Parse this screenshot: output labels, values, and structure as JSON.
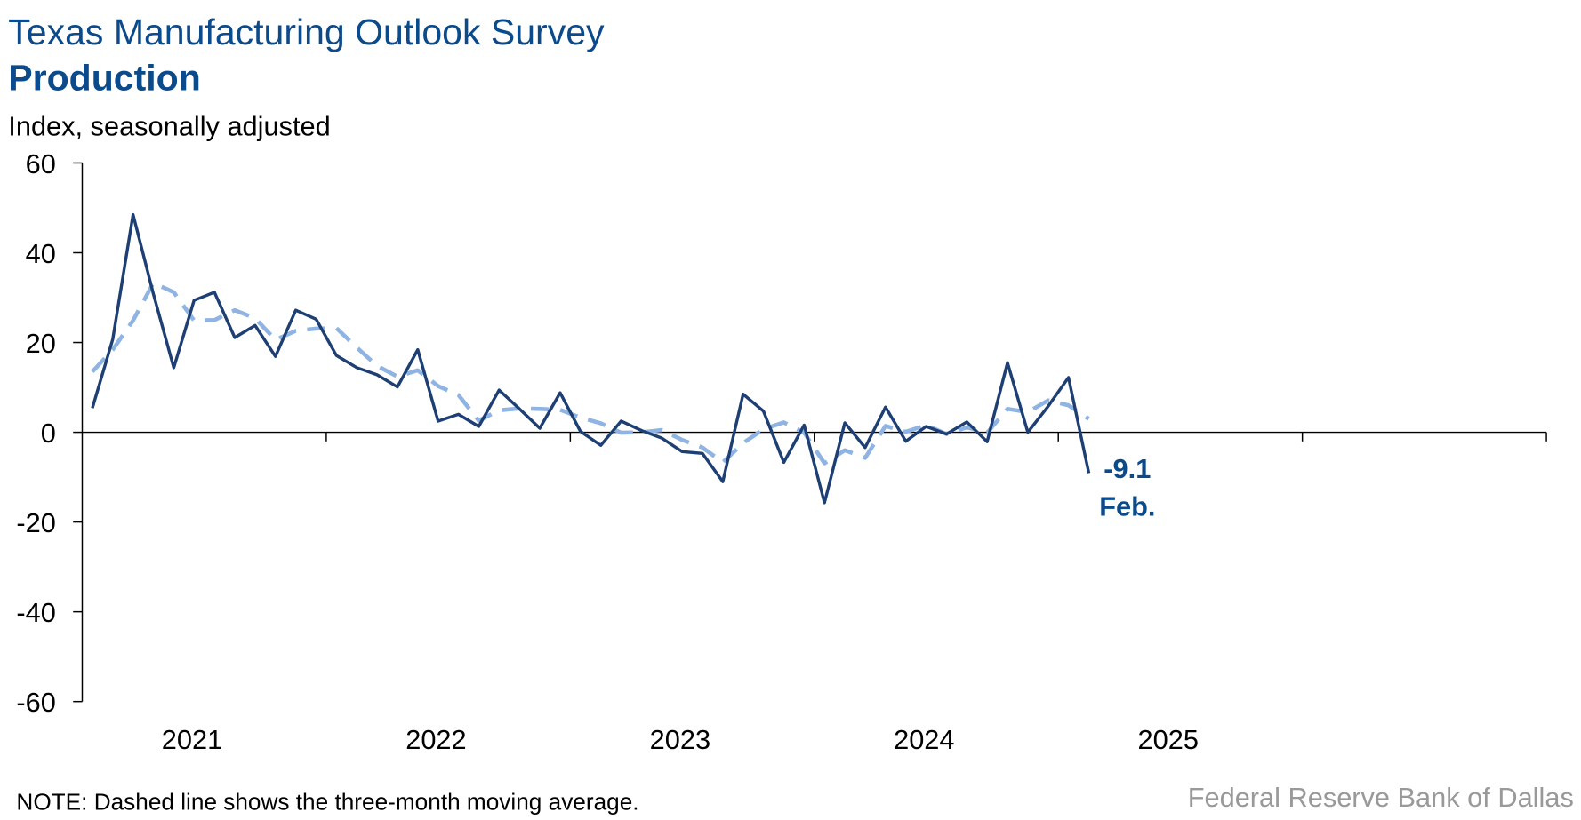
{
  "chart_data": {
    "type": "line",
    "title": "Texas Manufacturing Outlook Survey",
    "subtitle": "Production",
    "ylabel": "Index, seasonally adjusted",
    "note": "NOTE: Dashed line shows the three-month moving average.",
    "source": "Federal Reserve Bank of Dallas",
    "annotation": "Feb.",
    "categories": [
      null,
      null,
      null,
      null,
      null,
      null,
      null,
      null,
      null,
      null,
      null,
      null,
      null,
      null,
      null,
      null,
      null,
      null,
      null,
      null,
      null,
      null,
      null,
      null,
      null,
      null,
      null,
      null,
      null,
      null,
      null,
      null,
      null,
      null,
      null,
      null,
      null,
      null,
      null,
      null,
      null,
      null,
      null,
      null,
      null,
      null,
      null,
      null,
      null,
      null
    ],
    "x_labels": [
      "2021",
      "2022",
      "2023",
      "2024",
      "2025"
    ],
    "series": [
      {
        "color": "#1d3f73",
        "dash": false,
        "values": [
          5.4,
          20.7,
          48.5,
          30.8,
          14.4,
          29.4,
          31.2,
          21.1,
          23.8,
          16.9,
          27.2,
          25.2,
          17.1,
          14.4,
          12.8,
          10.1,
          18.4,
          2.5,
          4.0,
          1.3,
          9.4,
          5.2,
          0.9,
          8.8,
          0.2,
          -2.9,
          2.5,
          0.4,
          -1.3,
          -4.3,
          -4.7,
          -11.0,
          8.5,
          4.7,
          -6.7,
          1.6,
          -15.7,
          2.1,
          -3.4,
          5.6,
          -2.0,
          1.3,
          -0.4,
          2.3,
          -2.1,
          15.5,
          0.0,
          5.8,
          12.2,
          -9.1
        ]
      },
      {
        "color": "#8fb3e3",
        "dash": true,
        "values": [
          13.5,
          18.4,
          24.9,
          33.3,
          31.2,
          24.9,
          25.0,
          27.2,
          25.4,
          20.6,
          22.6,
          23.1,
          23.2,
          18.9,
          14.8,
          12.4,
          13.8,
          10.3,
          8.3,
          2.6,
          4.9,
          5.3,
          5.2,
          5.0,
          3.3,
          2.0,
          -0.1,
          0.0,
          0.5,
          -1.7,
          -3.4,
          -6.7,
          -2.4,
          0.7,
          2.2,
          -0.1,
          -6.9,
          -4.0,
          -5.7,
          1.4,
          0.1,
          1.6,
          -0.4,
          1.1,
          -0.1,
          5.2,
          4.5,
          7.1,
          6.0,
          3.0
        ]
      }
    ],
    "ylim": [
      -60,
      60
    ],
    "yticks": [
      -60,
      -40,
      -20,
      0,
      20,
      40,
      60
    ],
    "grid": false
  }
}
